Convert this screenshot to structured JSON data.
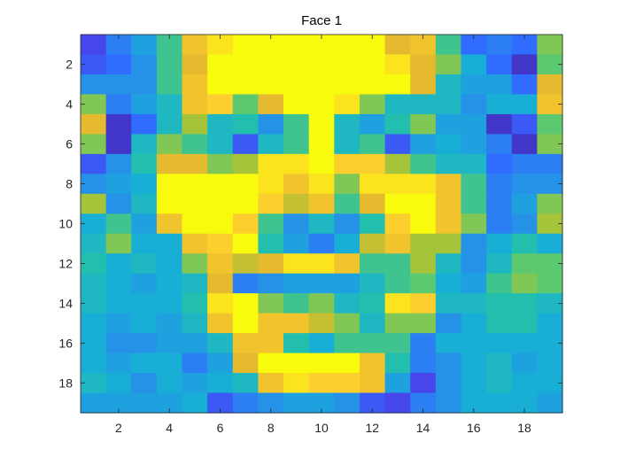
{
  "colors": {
    "axis": "#262626",
    "colormap": "parula"
  },
  "chart_data": {
    "type": "heatmap",
    "title": "Face 1",
    "xlabel": "",
    "ylabel": "",
    "xlim": [
      0.5,
      19.5
    ],
    "ylim": [
      0.5,
      19.5
    ],
    "y_direction": "reverse",
    "colormap": "parula",
    "color_range": [
      0,
      1
    ],
    "grid": false,
    "x_ticks": [
      2,
      4,
      6,
      8,
      10,
      12,
      14,
      16,
      18
    ],
    "y_ticks": [
      2,
      4,
      6,
      8,
      10,
      12,
      14,
      16,
      18
    ],
    "x_tick_labels": [
      "2",
      "4",
      "6",
      "8",
      "10",
      "12",
      "14",
      "16",
      "18"
    ],
    "y_tick_labels": [
      "2",
      "4",
      "6",
      "8",
      "10",
      "12",
      "14",
      "16",
      "18"
    ],
    "values": [
      [
        0.1,
        0.25,
        0.35,
        0.55,
        0.85,
        0.95,
        1.0,
        1.0,
        1.0,
        1.0,
        1.0,
        1.0,
        0.8,
        0.85,
        0.55,
        0.2,
        0.25,
        0.2,
        0.65
      ],
      [
        0.15,
        0.2,
        0.3,
        0.55,
        0.8,
        1.0,
        1.0,
        1.0,
        1.0,
        1.0,
        1.0,
        1.0,
        0.95,
        0.8,
        0.65,
        0.4,
        0.2,
        0.05,
        0.6
      ],
      [
        0.3,
        0.3,
        0.3,
        0.55,
        0.85,
        1.0,
        1.0,
        1.0,
        1.0,
        1.0,
        1.0,
        1.0,
        1.0,
        0.8,
        0.45,
        0.35,
        0.35,
        0.2,
        0.8
      ],
      [
        0.65,
        0.25,
        0.35,
        0.45,
        0.85,
        0.9,
        0.6,
        0.8,
        1.0,
        1.0,
        0.95,
        0.65,
        0.45,
        0.45,
        0.45,
        0.3,
        0.4,
        0.4,
        0.85
      ],
      [
        0.8,
        0.05,
        0.2,
        0.45,
        0.7,
        0.45,
        0.5,
        0.3,
        0.55,
        1.0,
        0.45,
        0.35,
        0.5,
        0.65,
        0.35,
        0.35,
        0.05,
        0.15,
        0.6
      ],
      [
        0.65,
        0.05,
        0.45,
        0.65,
        0.55,
        0.45,
        0.15,
        0.45,
        0.55,
        1.0,
        0.45,
        0.55,
        0.15,
        0.35,
        0.4,
        0.35,
        0.25,
        0.05,
        0.65
      ],
      [
        0.15,
        0.3,
        0.5,
        0.8,
        0.8,
        0.65,
        0.7,
        0.95,
        0.95,
        1.0,
        0.9,
        0.9,
        0.7,
        0.55,
        0.45,
        0.45,
        0.2,
        0.25,
        0.25
      ],
      [
        0.3,
        0.35,
        0.4,
        1.0,
        1.0,
        1.0,
        1.0,
        0.95,
        0.85,
        0.95,
        0.65,
        0.95,
        0.95,
        0.95,
        0.85,
        0.55,
        0.25,
        0.3,
        0.3
      ],
      [
        0.7,
        0.3,
        0.45,
        1.0,
        1.0,
        1.0,
        1.0,
        0.9,
        0.75,
        0.85,
        0.55,
        0.8,
        1.0,
        1.0,
        0.85,
        0.55,
        0.25,
        0.35,
        0.65
      ],
      [
        0.4,
        0.55,
        0.35,
        0.85,
        1.0,
        1.0,
        0.9,
        0.55,
        0.3,
        0.45,
        0.3,
        0.5,
        0.9,
        1.0,
        0.85,
        0.65,
        0.25,
        0.3,
        0.7
      ],
      [
        0.45,
        0.65,
        0.4,
        0.4,
        0.85,
        0.9,
        1.0,
        0.5,
        0.35,
        0.25,
        0.4,
        0.75,
        0.85,
        0.7,
        0.7,
        0.3,
        0.4,
        0.5,
        0.4
      ],
      [
        0.5,
        0.4,
        0.45,
        0.4,
        0.65,
        0.85,
        0.75,
        0.8,
        0.95,
        0.95,
        0.85,
        0.55,
        0.55,
        0.7,
        0.45,
        0.3,
        0.45,
        0.6,
        0.6
      ],
      [
        0.45,
        0.4,
        0.35,
        0.4,
        0.45,
        0.8,
        0.25,
        0.3,
        0.35,
        0.35,
        0.35,
        0.45,
        0.55,
        0.6,
        0.4,
        0.35,
        0.55,
        0.65,
        0.6
      ],
      [
        0.45,
        0.4,
        0.4,
        0.4,
        0.5,
        0.95,
        1.0,
        0.65,
        0.55,
        0.65,
        0.45,
        0.5,
        0.95,
        0.9,
        0.45,
        0.45,
        0.5,
        0.5,
        0.45
      ],
      [
        0.4,
        0.35,
        0.4,
        0.35,
        0.45,
        0.85,
        1.0,
        0.85,
        0.85,
        0.75,
        0.65,
        0.45,
        0.65,
        0.65,
        0.3,
        0.4,
        0.5,
        0.5,
        0.4
      ],
      [
        0.4,
        0.3,
        0.3,
        0.35,
        0.35,
        0.45,
        0.85,
        0.85,
        0.5,
        0.4,
        0.55,
        0.55,
        0.55,
        0.25,
        0.4,
        0.4,
        0.4,
        0.4,
        0.4
      ],
      [
        0.4,
        0.35,
        0.4,
        0.4,
        0.25,
        0.35,
        0.8,
        1.0,
        1.0,
        1.0,
        1.0,
        0.85,
        0.5,
        0.25,
        0.3,
        0.4,
        0.45,
        0.35,
        0.4
      ],
      [
        0.45,
        0.4,
        0.3,
        0.4,
        0.35,
        0.4,
        0.45,
        0.85,
        0.95,
        0.9,
        0.9,
        0.85,
        0.35,
        0.1,
        0.3,
        0.4,
        0.45,
        0.4,
        0.4
      ],
      [
        0.35,
        0.35,
        0.35,
        0.35,
        0.4,
        0.15,
        0.25,
        0.3,
        0.35,
        0.35,
        0.3,
        0.15,
        0.1,
        0.25,
        0.3,
        0.4,
        0.4,
        0.4,
        0.35
      ]
    ]
  }
}
